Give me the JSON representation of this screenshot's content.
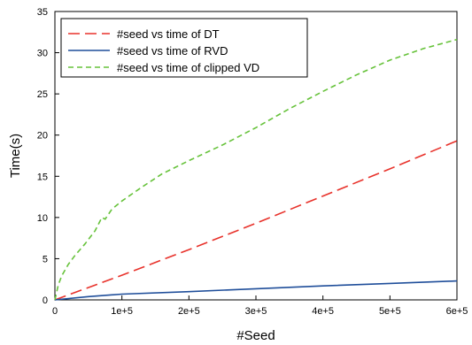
{
  "chart_data": {
    "type": "line",
    "title": "",
    "xlabel": "#Seed",
    "ylabel": "Time(s)",
    "xlim": [
      0,
      600000
    ],
    "ylim": [
      0,
      35
    ],
    "x_ticks": [
      0,
      100000,
      200000,
      300000,
      400000,
      500000,
      600000
    ],
    "x_tick_labels": [
      "0",
      "1e+5",
      "2e+5",
      "3e+5",
      "4e+5",
      "5e+5",
      "6e+5"
    ],
    "y_ticks": [
      0,
      5,
      10,
      15,
      20,
      25,
      30,
      35
    ],
    "y_tick_labels": [
      "0",
      "5",
      "10",
      "15",
      "20",
      "25",
      "30",
      "35"
    ],
    "grid": false,
    "legend_position": "top-left",
    "series": [
      {
        "name": "#seed vs time of DT",
        "color": "#e8322b",
        "style": "long-dash",
        "x": [
          0,
          100000,
          200000,
          300000,
          400000,
          500000,
          600000
        ],
        "y": [
          0,
          3.0,
          6.1,
          9.3,
          12.6,
          15.9,
          19.3
        ]
      },
      {
        "name": "#seed vs time of RVD",
        "color": "#1f4e9a",
        "style": "solid",
        "x": [
          0,
          50000,
          100000,
          200000,
          300000,
          400000,
          500000,
          600000
        ],
        "y": [
          0,
          0.4,
          0.7,
          1.0,
          1.35,
          1.7,
          2.0,
          2.3
        ]
      },
      {
        "name": "#seed vs time of clipped VD",
        "color": "#66c23a",
        "style": "short-dash",
        "x": [
          0,
          5000,
          10000,
          20000,
          30000,
          45000,
          60000,
          70000,
          75000,
          85000,
          100000,
          130000,
          160000,
          200000,
          250000,
          300000,
          350000,
          400000,
          450000,
          500000,
          550000,
          600000
        ],
        "y": [
          0,
          1.8,
          2.9,
          4.3,
          5.4,
          6.8,
          8.4,
          10.0,
          9.8,
          11.0,
          12.0,
          13.7,
          15.3,
          16.9,
          18.8,
          20.9,
          23.2,
          25.3,
          27.3,
          29.1,
          30.5,
          31.6
        ]
      }
    ]
  }
}
